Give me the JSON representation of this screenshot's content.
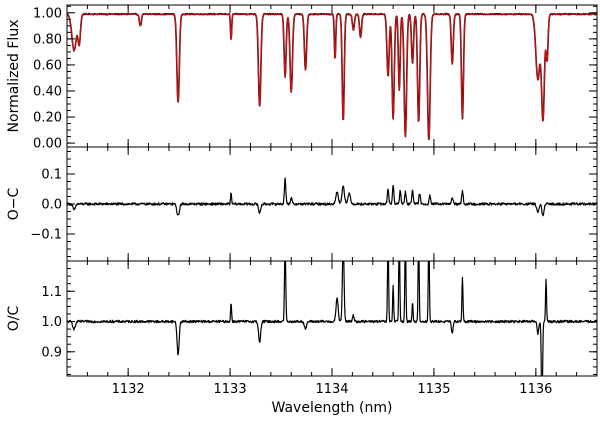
{
  "chart_data": [
    {
      "type": "line",
      "ylabel": "Normalized Flux",
      "xlim": [
        1131.4,
        1136.6
      ],
      "ylim": [
        -0.03,
        1.06
      ],
      "yticks": [
        "0.00",
        "0.20",
        "0.40",
        "0.60",
        "0.80",
        "1.00"
      ],
      "ytick_values": [
        0.0,
        0.2,
        0.4,
        0.6,
        0.8,
        1.0
      ],
      "continuum": 0.99,
      "series": [
        {
          "color": "#000000",
          "noise": 0.004
        },
        {
          "color": "#cc1111",
          "noise": 0.0
        }
      ],
      "lines": [
        {
          "x": 1131.47,
          "depth": 0.28,
          "width": 0.022
        },
        {
          "x": 1131.52,
          "depth": 0.22,
          "width": 0.012
        },
        {
          "x": 1132.12,
          "depth": 0.09,
          "width": 0.01
        },
        {
          "x": 1132.49,
          "depth": 0.68,
          "width": 0.012
        },
        {
          "x": 1133.01,
          "depth": 0.2,
          "width": 0.006
        },
        {
          "x": 1133.29,
          "depth": 0.71,
          "width": 0.012
        },
        {
          "x": 1133.54,
          "depth": 0.48,
          "width": 0.01
        },
        {
          "x": 1133.6,
          "depth": 0.6,
          "width": 0.012
        },
        {
          "x": 1133.74,
          "depth": 0.43,
          "width": 0.011
        },
        {
          "x": 1134.03,
          "depth": 0.35,
          "width": 0.007
        },
        {
          "x": 1134.11,
          "depth": 0.82,
          "width": 0.01
        },
        {
          "x": 1134.21,
          "depth": 0.12,
          "width": 0.01
        },
        {
          "x": 1134.28,
          "depth": 0.18,
          "width": 0.01
        },
        {
          "x": 1134.55,
          "depth": 0.48,
          "width": 0.011
        },
        {
          "x": 1134.6,
          "depth": 0.8,
          "width": 0.011
        },
        {
          "x": 1134.66,
          "depth": 0.58,
          "width": 0.009
        },
        {
          "x": 1134.72,
          "depth": 0.94,
          "width": 0.012
        },
        {
          "x": 1134.79,
          "depth": 0.38,
          "width": 0.01
        },
        {
          "x": 1134.85,
          "depth": 0.83,
          "width": 0.011
        },
        {
          "x": 1134.95,
          "depth": 0.97,
          "width": 0.013
        },
        {
          "x": 1135.18,
          "depth": 0.38,
          "width": 0.01
        },
        {
          "x": 1135.28,
          "depth": 0.8,
          "width": 0.01
        },
        {
          "x": 1136.02,
          "depth": 0.5,
          "width": 0.02
        },
        {
          "x": 1136.07,
          "depth": 0.8,
          "width": 0.014
        },
        {
          "x": 1136.11,
          "depth": 0.35,
          "width": 0.01
        }
      ]
    },
    {
      "type": "line",
      "ylabel": "O−C",
      "xlim": [
        1131.4,
        1136.6
      ],
      "ylim": [
        -0.19,
        0.19
      ],
      "yticks": [
        "0.1",
        "0.0",
        "−0.1"
      ],
      "ytick_values": [
        0.1,
        0.0,
        -0.1
      ],
      "baseline": 0.0,
      "noise": 0.004,
      "series": [
        {
          "color": "#000000"
        }
      ],
      "features": [
        {
          "x": 1131.47,
          "amp": -0.02,
          "width": 0.012
        },
        {
          "x": 1132.49,
          "amp": -0.04,
          "width": 0.012
        },
        {
          "x": 1133.01,
          "amp": 0.035,
          "width": 0.005
        },
        {
          "x": 1133.29,
          "amp": -0.03,
          "width": 0.01
        },
        {
          "x": 1133.54,
          "amp": 0.085,
          "width": 0.007
        },
        {
          "x": 1133.6,
          "amp": 0.02,
          "width": 0.008
        },
        {
          "x": 1134.05,
          "amp": 0.04,
          "width": 0.012
        },
        {
          "x": 1134.11,
          "amp": 0.06,
          "width": 0.012
        },
        {
          "x": 1134.17,
          "amp": 0.035,
          "width": 0.012
        },
        {
          "x": 1134.55,
          "amp": 0.05,
          "width": 0.007
        },
        {
          "x": 1134.6,
          "amp": 0.06,
          "width": 0.007
        },
        {
          "x": 1134.67,
          "amp": 0.045,
          "width": 0.007
        },
        {
          "x": 1134.72,
          "amp": 0.04,
          "width": 0.007
        },
        {
          "x": 1134.79,
          "amp": 0.05,
          "width": 0.007
        },
        {
          "x": 1134.86,
          "amp": 0.035,
          "width": 0.007
        },
        {
          "x": 1134.96,
          "amp": 0.03,
          "width": 0.007
        },
        {
          "x": 1135.18,
          "amp": 0.02,
          "width": 0.008
        },
        {
          "x": 1135.28,
          "amp": 0.045,
          "width": 0.007
        },
        {
          "x": 1136.02,
          "amp": -0.03,
          "width": 0.01
        },
        {
          "x": 1136.07,
          "amp": -0.04,
          "width": 0.01
        }
      ]
    },
    {
      "type": "line",
      "ylabel": "O/C",
      "xlabel": "Wavelength (nm)",
      "xlim": [
        1131.4,
        1136.6
      ],
      "ylim": [
        0.82,
        1.2
      ],
      "yticks": [
        "1.1",
        "1.0",
        "0.9"
      ],
      "ytick_values": [
        1.1,
        1.0,
        0.9
      ],
      "xticks": [
        "1132",
        "1133",
        "1134",
        "1135",
        "1136"
      ],
      "xtick_values": [
        1132,
        1133,
        1134,
        1135,
        1136
      ],
      "baseline": 1.0,
      "noise": 0.004,
      "series": [
        {
          "color": "#000000"
        }
      ],
      "features": [
        {
          "x": 1131.47,
          "amp": -0.025,
          "width": 0.012
        },
        {
          "x": 1132.49,
          "amp": -0.11,
          "width": 0.01
        },
        {
          "x": 1133.01,
          "amp": 0.06,
          "width": 0.005
        },
        {
          "x": 1133.29,
          "amp": -0.07,
          "width": 0.01
        },
        {
          "x": 1133.54,
          "amp": 0.25,
          "width": 0.006
        },
        {
          "x": 1133.74,
          "amp": -0.025,
          "width": 0.01
        },
        {
          "x": 1134.05,
          "amp": 0.08,
          "width": 0.01
        },
        {
          "x": 1134.11,
          "amp": 0.26,
          "width": 0.008
        },
        {
          "x": 1134.21,
          "amp": 0.02,
          "width": 0.008
        },
        {
          "x": 1134.55,
          "amp": 0.3,
          "width": 0.005
        },
        {
          "x": 1134.6,
          "amp": 0.12,
          "width": 0.005
        },
        {
          "x": 1134.66,
          "amp": 0.3,
          "width": 0.005
        },
        {
          "x": 1134.72,
          "amp": 0.3,
          "width": 0.005
        },
        {
          "x": 1134.79,
          "amp": 0.06,
          "width": 0.005
        },
        {
          "x": 1134.85,
          "amp": 0.3,
          "width": 0.005
        },
        {
          "x": 1134.95,
          "amp": 0.3,
          "width": 0.005
        },
        {
          "x": 1135.18,
          "amp": -0.04,
          "width": 0.008
        },
        {
          "x": 1135.28,
          "amp": 0.15,
          "width": 0.005
        },
        {
          "x": 1136.02,
          "amp": -0.04,
          "width": 0.008
        },
        {
          "x": 1136.06,
          "amp": -0.3,
          "width": 0.006
        },
        {
          "x": 1136.1,
          "amp": 0.14,
          "width": 0.005
        }
      ]
    }
  ]
}
